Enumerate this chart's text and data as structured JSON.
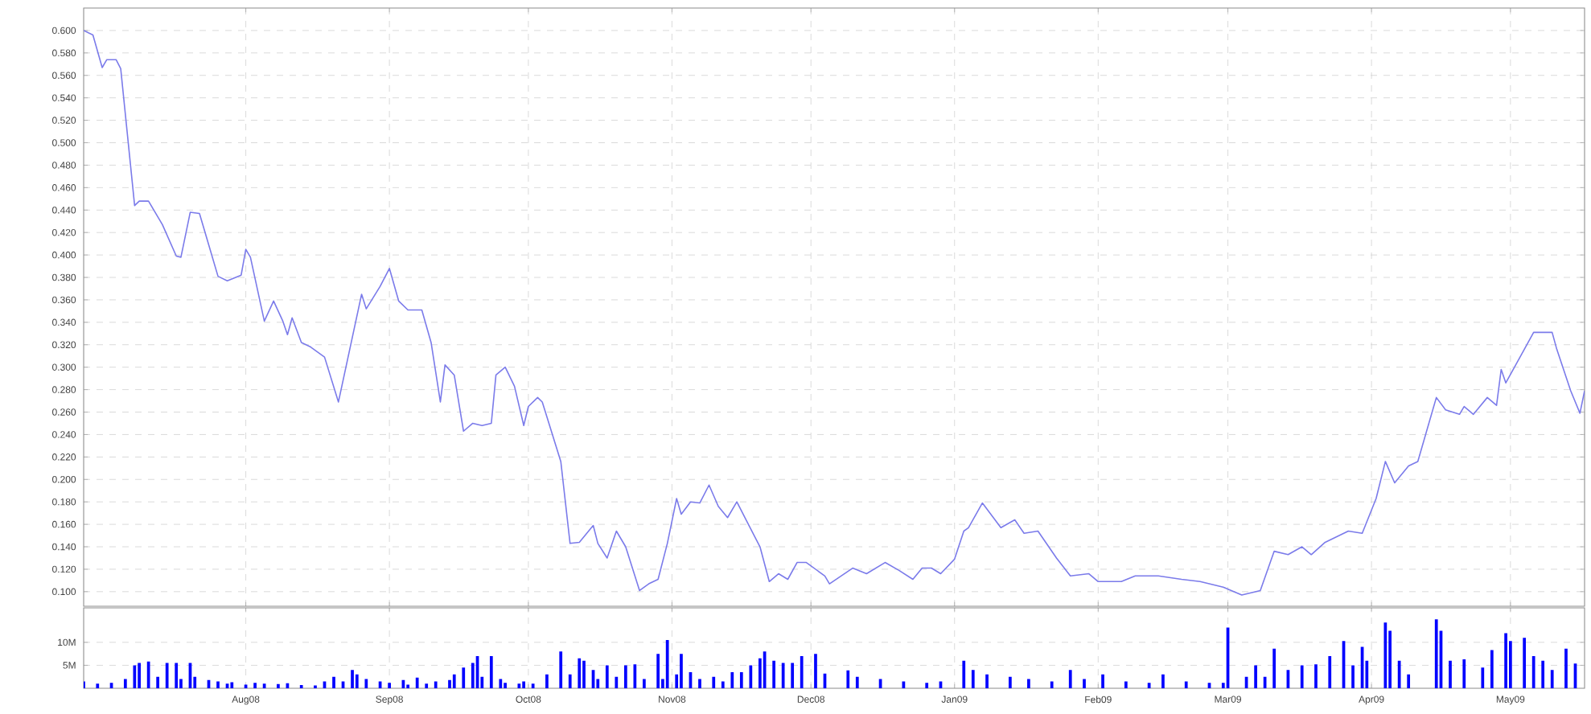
{
  "chart_data": [
    {
      "type": "line",
      "color": "#7b7bea",
      "grid": true,
      "tick_labels": "y",
      "xlim": [
        "2008-06-27",
        "2009-05-17"
      ],
      "ylim": [
        0.087,
        0.62
      ],
      "xticks": [
        {
          "value": "2008-08-01",
          "label": null
        },
        {
          "value": "2008-09-01",
          "label": null
        },
        {
          "value": "2008-10-01",
          "label": null
        },
        {
          "value": "2008-11-01",
          "label": null
        },
        {
          "value": "2008-12-01",
          "label": null
        },
        {
          "value": "2009-01-01",
          "label": null
        },
        {
          "value": "2009-02-01",
          "label": null
        },
        {
          "value": "2009-03-01",
          "label": null
        },
        {
          "value": "2009-04-01",
          "label": null
        },
        {
          "value": "2009-05-01",
          "label": null
        }
      ],
      "yticks": [
        {
          "value": 0.1,
          "label": "0.100"
        },
        {
          "value": 0.12,
          "label": "0.120"
        },
        {
          "value": 0.14,
          "label": "0.140"
        },
        {
          "value": 0.16,
          "label": "0.160"
        },
        {
          "value": 0.18,
          "label": "0.180"
        },
        {
          "value": 0.2,
          "label": "0.200"
        },
        {
          "value": 0.22,
          "label": "0.220"
        },
        {
          "value": 0.24,
          "label": "0.240"
        },
        {
          "value": 0.26,
          "label": "0.260"
        },
        {
          "value": 0.28,
          "label": "0.280"
        },
        {
          "value": 0.3,
          "label": "0.300"
        },
        {
          "value": 0.32,
          "label": "0.320"
        },
        {
          "value": 0.34,
          "label": "0.340"
        },
        {
          "value": 0.36,
          "label": "0.360"
        },
        {
          "value": 0.38,
          "label": "0.380"
        },
        {
          "value": 0.4,
          "label": "0.400"
        },
        {
          "value": 0.42,
          "label": "0.420"
        },
        {
          "value": 0.44,
          "label": "0.440"
        },
        {
          "value": 0.46,
          "label": "0.460"
        },
        {
          "value": 0.48,
          "label": "0.480"
        },
        {
          "value": 0.5,
          "label": "0.500"
        },
        {
          "value": 0.52,
          "label": "0.520"
        },
        {
          "value": 0.54,
          "label": "0.540"
        },
        {
          "value": 0.56,
          "label": "0.560"
        },
        {
          "value": 0.58,
          "label": "0.580"
        },
        {
          "value": 0.6,
          "label": "0.600"
        }
      ],
      "x": [
        "2008-06-27",
        "2008-06-29",
        "2008-07-01",
        "2008-07-02",
        "2008-07-04",
        "2008-07-05",
        "2008-07-08",
        "2008-07-09",
        "2008-07-11",
        "2008-07-14",
        "2008-07-17",
        "2008-07-18",
        "2008-07-20",
        "2008-07-22",
        "2008-07-26",
        "2008-07-28",
        "2008-07-31",
        "2008-08-01",
        "2008-08-02",
        "2008-08-05",
        "2008-08-07",
        "2008-08-09",
        "2008-08-10",
        "2008-08-11",
        "2008-08-13",
        "2008-08-15",
        "2008-08-18",
        "2008-08-21",
        "2008-08-26",
        "2008-08-27",
        "2008-08-30",
        "2008-09-01",
        "2008-09-03",
        "2008-09-05",
        "2008-09-08",
        "2008-09-10",
        "2008-09-12",
        "2008-09-13",
        "2008-09-15",
        "2008-09-17",
        "2008-09-19",
        "2008-09-21",
        "2008-09-23",
        "2008-09-24",
        "2008-09-26",
        "2008-09-28",
        "2008-09-30",
        "2008-10-01",
        "2008-10-03",
        "2008-10-04",
        "2008-10-08",
        "2008-10-10",
        "2008-10-12",
        "2008-10-15",
        "2008-10-16",
        "2008-10-18",
        "2008-10-20",
        "2008-10-22",
        "2008-10-25",
        "2008-10-27",
        "2008-10-29",
        "2008-10-31",
        "2008-11-02",
        "2008-11-03",
        "2008-11-05",
        "2008-11-07",
        "2008-11-09",
        "2008-11-11",
        "2008-11-13",
        "2008-11-15",
        "2008-11-17",
        "2008-11-20",
        "2008-11-22",
        "2008-11-24",
        "2008-11-26",
        "2008-11-28",
        "2008-11-30",
        "2008-12-04",
        "2008-12-05",
        "2008-12-10",
        "2008-12-13",
        "2008-12-17",
        "2008-12-20",
        "2008-12-23",
        "2008-12-25",
        "2008-12-27",
        "2008-12-29",
        "2009-01-01",
        "2009-01-03",
        "2009-01-04",
        "2009-01-07",
        "2009-01-11",
        "2009-01-14",
        "2009-01-16",
        "2009-01-19",
        "2009-01-23",
        "2009-01-26",
        "2009-01-30",
        "2009-02-01",
        "2009-02-06",
        "2009-02-09",
        "2009-02-14",
        "2009-02-19",
        "2009-02-23",
        "2009-02-28",
        "2009-03-04",
        "2009-03-08",
        "2009-03-11",
        "2009-03-14",
        "2009-03-17",
        "2009-03-19",
        "2009-03-22",
        "2009-03-27",
        "2009-03-30",
        "2009-04-02",
        "2009-04-04",
        "2009-04-06",
        "2009-04-09",
        "2009-04-11",
        "2009-04-15",
        "2009-04-17",
        "2009-04-20",
        "2009-04-21",
        "2009-04-23",
        "2009-04-26",
        "2009-04-28",
        "2009-04-29",
        "2009-04-30",
        "2009-05-04",
        "2009-05-06",
        "2009-05-10",
        "2009-05-11",
        "2009-05-14",
        "2009-05-16",
        "2009-05-17"
      ],
      "values": [
        0.6,
        0.596,
        0.567,
        0.574,
        0.574,
        0.566,
        0.444,
        0.448,
        0.448,
        0.427,
        0.399,
        0.398,
        0.438,
        0.437,
        0.381,
        0.377,
        0.382,
        0.405,
        0.398,
        0.341,
        0.359,
        0.341,
        0.329,
        0.344,
        0.322,
        0.318,
        0.309,
        0.269,
        0.365,
        0.352,
        0.372,
        0.388,
        0.359,
        0.351,
        0.351,
        0.322,
        0.269,
        0.302,
        0.293,
        0.243,
        0.25,
        0.248,
        0.25,
        0.293,
        0.3,
        0.283,
        0.248,
        0.265,
        0.273,
        0.269,
        0.216,
        0.143,
        0.144,
        0.159,
        0.143,
        0.13,
        0.154,
        0.14,
        0.101,
        0.107,
        0.111,
        0.143,
        0.183,
        0.169,
        0.18,
        0.179,
        0.195,
        0.176,
        0.166,
        0.18,
        0.164,
        0.14,
        0.109,
        0.116,
        0.111,
        0.126,
        0.126,
        0.114,
        0.107,
        0.121,
        0.116,
        0.126,
        0.119,
        0.111,
        0.121,
        0.121,
        0.116,
        0.129,
        0.154,
        0.157,
        0.179,
        0.157,
        0.164,
        0.152,
        0.154,
        0.13,
        0.114,
        0.116,
        0.109,
        0.109,
        0.114,
        0.114,
        0.111,
        0.109,
        0.104,
        0.097,
        0.101,
        0.136,
        0.133,
        0.14,
        0.133,
        0.144,
        0.154,
        0.152,
        0.183,
        0.216,
        0.197,
        0.212,
        0.216,
        0.273,
        0.262,
        0.258,
        0.265,
        0.258,
        0.273,
        0.266,
        0.298,
        0.286,
        0.316,
        0.331,
        0.331,
        0.316,
        0.279,
        0.259,
        0.279
      ]
    },
    {
      "type": "bar",
      "color": "#0000ff",
      "grid": true,
      "xlim": [
        "2008-06-27",
        "2009-05-17"
      ],
      "ylim": [
        0,
        17.5
      ],
      "xticks": [
        {
          "value": "2008-08-01",
          "label": "Aug08"
        },
        {
          "value": "2008-09-01",
          "label": "Sep08"
        },
        {
          "value": "2008-10-01",
          "label": "Oct08"
        },
        {
          "value": "2008-11-01",
          "label": "Nov08"
        },
        {
          "value": "2008-12-01",
          "label": "Dec08"
        },
        {
          "value": "2009-01-01",
          "label": "Jan09"
        },
        {
          "value": "2009-02-01",
          "label": "Feb09"
        },
        {
          "value": "2009-03-01",
          "label": "Mar09"
        },
        {
          "value": "2009-04-01",
          "label": "Apr09"
        },
        {
          "value": "2009-05-01",
          "label": "May09"
        }
      ],
      "yticks": [
        {
          "value": 5,
          "label": "5M"
        },
        {
          "value": 10,
          "label": "10M"
        }
      ],
      "x": [
        "2008-06-27",
        "2008-06-30",
        "2008-07-03",
        "2008-07-06",
        "2008-07-08",
        "2008-07-09",
        "2008-07-11",
        "2008-07-13",
        "2008-07-15",
        "2008-07-17",
        "2008-07-18",
        "2008-07-20",
        "2008-07-21",
        "2008-07-24",
        "2008-07-26",
        "2008-07-28",
        "2008-07-29",
        "2008-08-01",
        "2008-08-03",
        "2008-08-05",
        "2008-08-08",
        "2008-08-10",
        "2008-08-13",
        "2008-08-16",
        "2008-08-18",
        "2008-08-20",
        "2008-08-22",
        "2008-08-24",
        "2008-08-25",
        "2008-08-27",
        "2008-08-30",
        "2008-09-01",
        "2008-09-04",
        "2008-09-05",
        "2008-09-07",
        "2008-09-09",
        "2008-09-11",
        "2008-09-14",
        "2008-09-15",
        "2008-09-17",
        "2008-09-19",
        "2008-09-20",
        "2008-09-21",
        "2008-09-23",
        "2008-09-25",
        "2008-09-26",
        "2008-09-29",
        "2008-09-30",
        "2008-10-02",
        "2008-10-05",
        "2008-10-08",
        "2008-10-10",
        "2008-10-12",
        "2008-10-13",
        "2008-10-15",
        "2008-10-16",
        "2008-10-18",
        "2008-10-20",
        "2008-10-22",
        "2008-10-24",
        "2008-10-26",
        "2008-10-29",
        "2008-10-30",
        "2008-10-31",
        "2008-11-02",
        "2008-11-03",
        "2008-11-05",
        "2008-11-07",
        "2008-11-10",
        "2008-11-12",
        "2008-11-14",
        "2008-11-16",
        "2008-11-18",
        "2008-11-20",
        "2008-11-21",
        "2008-11-23",
        "2008-11-25",
        "2008-11-27",
        "2008-11-29",
        "2008-12-02",
        "2008-12-04",
        "2008-12-09",
        "2008-12-11",
        "2008-12-16",
        "2008-12-21",
        "2008-12-26",
        "2008-12-29",
        "2009-01-03",
        "2009-01-05",
        "2009-01-08",
        "2009-01-13",
        "2009-01-17",
        "2009-01-22",
        "2009-01-26",
        "2009-01-29",
        "2009-02-02",
        "2009-02-07",
        "2009-02-12",
        "2009-02-15",
        "2009-02-20",
        "2009-02-25",
        "2009-02-28",
        "2009-03-01",
        "2009-03-05",
        "2009-03-07",
        "2009-03-09",
        "2009-03-11",
        "2009-03-14",
        "2009-03-17",
        "2009-03-20",
        "2009-03-23",
        "2009-03-26",
        "2009-03-28",
        "2009-03-30",
        "2009-03-31",
        "2009-04-04",
        "2009-04-05",
        "2009-04-07",
        "2009-04-09",
        "2009-04-15",
        "2009-04-16",
        "2009-04-18",
        "2009-04-21",
        "2009-04-25",
        "2009-04-27",
        "2009-04-30",
        "2009-05-01",
        "2009-05-04",
        "2009-05-06",
        "2009-05-08",
        "2009-05-10",
        "2009-05-13",
        "2009-05-15"
      ],
      "values": [
        1.5,
        1.0,
        1.2,
        2.0,
        5.0,
        5.5,
        5.8,
        2.5,
        5.5,
        5.5,
        2.0,
        5.5,
        2.5,
        1.8,
        1.5,
        1.0,
        1.3,
        0.8,
        1.2,
        1.0,
        0.9,
        1.1,
        0.7,
        0.6,
        1.5,
        2.5,
        1.5,
        4.0,
        3.0,
        2.0,
        1.5,
        1.2,
        1.8,
        0.8,
        2.3,
        1.0,
        1.5,
        1.8,
        3.0,
        4.5,
        5.5,
        7.0,
        2.5,
        7.0,
        2.0,
        1.2,
        1.0,
        1.5,
        1.0,
        3.0,
        8.0,
        3.0,
        6.5,
        6.0,
        4.0,
        2.0,
        5.0,
        2.5,
        5.0,
        5.2,
        2.0,
        7.5,
        2.0,
        10.5,
        3.0,
        7.5,
        3.5,
        2.0,
        2.5,
        1.5,
        3.5,
        3.5,
        5.0,
        6.5,
        8.0,
        6.0,
        5.5,
        5.5,
        7.0,
        7.5,
        3.2,
        3.9,
        2.5,
        2.0,
        1.5,
        1.2,
        1.5,
        6.0,
        4.0,
        3.0,
        2.5,
        2.0,
        1.5,
        4.0,
        2.0,
        3.0,
        1.5,
        1.2,
        3.0,
        1.5,
        1.2,
        1.2,
        13.2,
        2.5,
        5.0,
        2.5,
        8.6,
        4.0,
        5.0,
        5.2,
        7.0,
        10.3,
        5.0,
        9.0,
        6.0,
        14.3,
        12.5,
        6.0,
        3.0,
        15.0,
        12.5,
        6.0,
        6.3,
        4.5,
        8.3,
        12.0,
        10.3,
        11.0,
        7.0,
        6.0,
        4.0,
        8.6,
        5.4
      ]
    }
  ]
}
